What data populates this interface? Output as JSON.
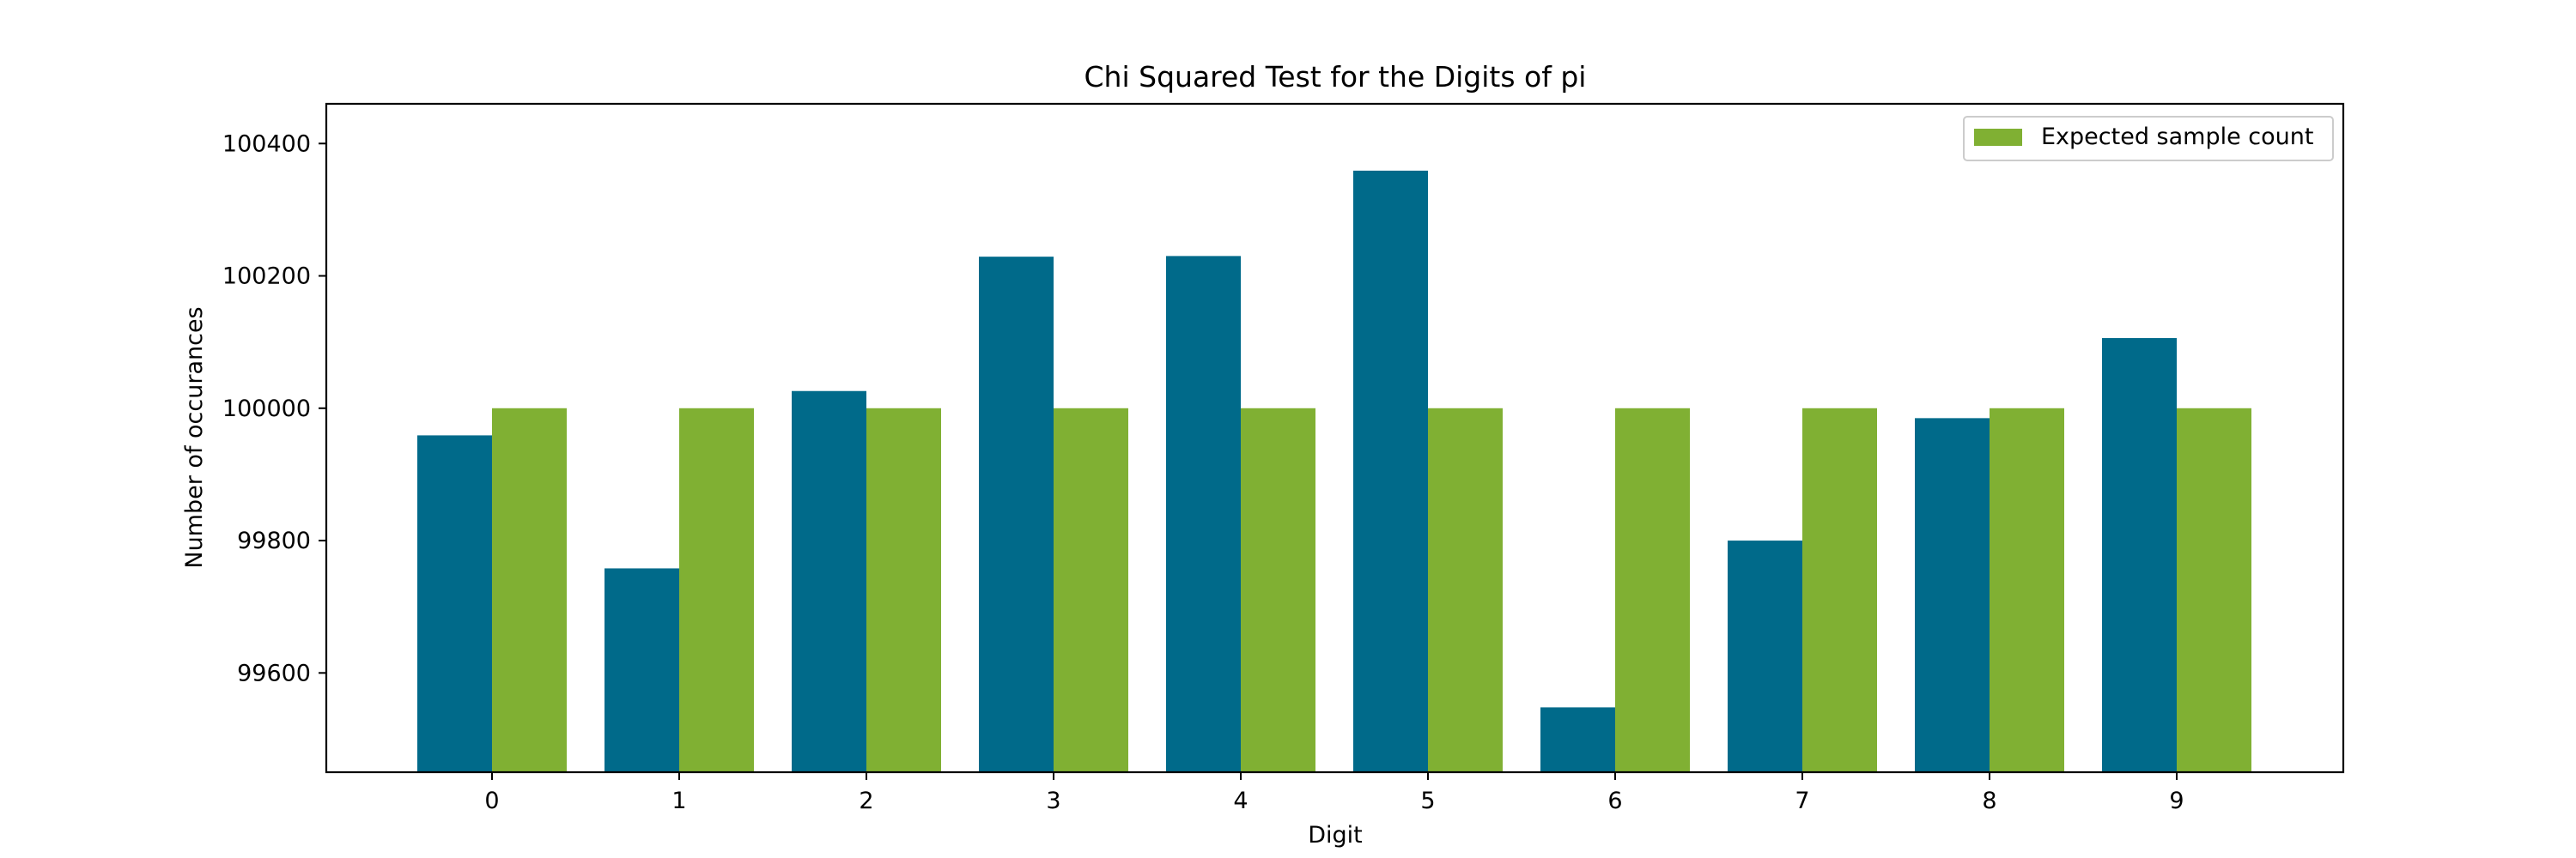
{
  "chart_data": {
    "type": "bar",
    "title": "Chi Squared Test for the Digits of pi",
    "xlabel": "Digit",
    "ylabel": "Number of occurances",
    "categories": [
      "0",
      "1",
      "2",
      "3",
      "4",
      "5",
      "6",
      "7",
      "8",
      "9"
    ],
    "ylim": [
      99450,
      100460
    ],
    "yticks": [
      99600,
      99800,
      100000,
      100200,
      100400
    ],
    "series": [
      {
        "name": "",
        "color": "#006a8a",
        "values": [
          99959,
          99758,
          100026,
          100229,
          100230,
          100359,
          99548,
          99800,
          99985,
          100106
        ]
      },
      {
        "name": "Expected sample count",
        "color": "#80b033",
        "values": [
          100000,
          100000,
          100000,
          100000,
          100000,
          100000,
          100000,
          100000,
          100000,
          100000
        ]
      }
    ],
    "legend": {
      "position": "top-right",
      "entries": [
        "Expected sample count"
      ]
    },
    "grid": false
  }
}
